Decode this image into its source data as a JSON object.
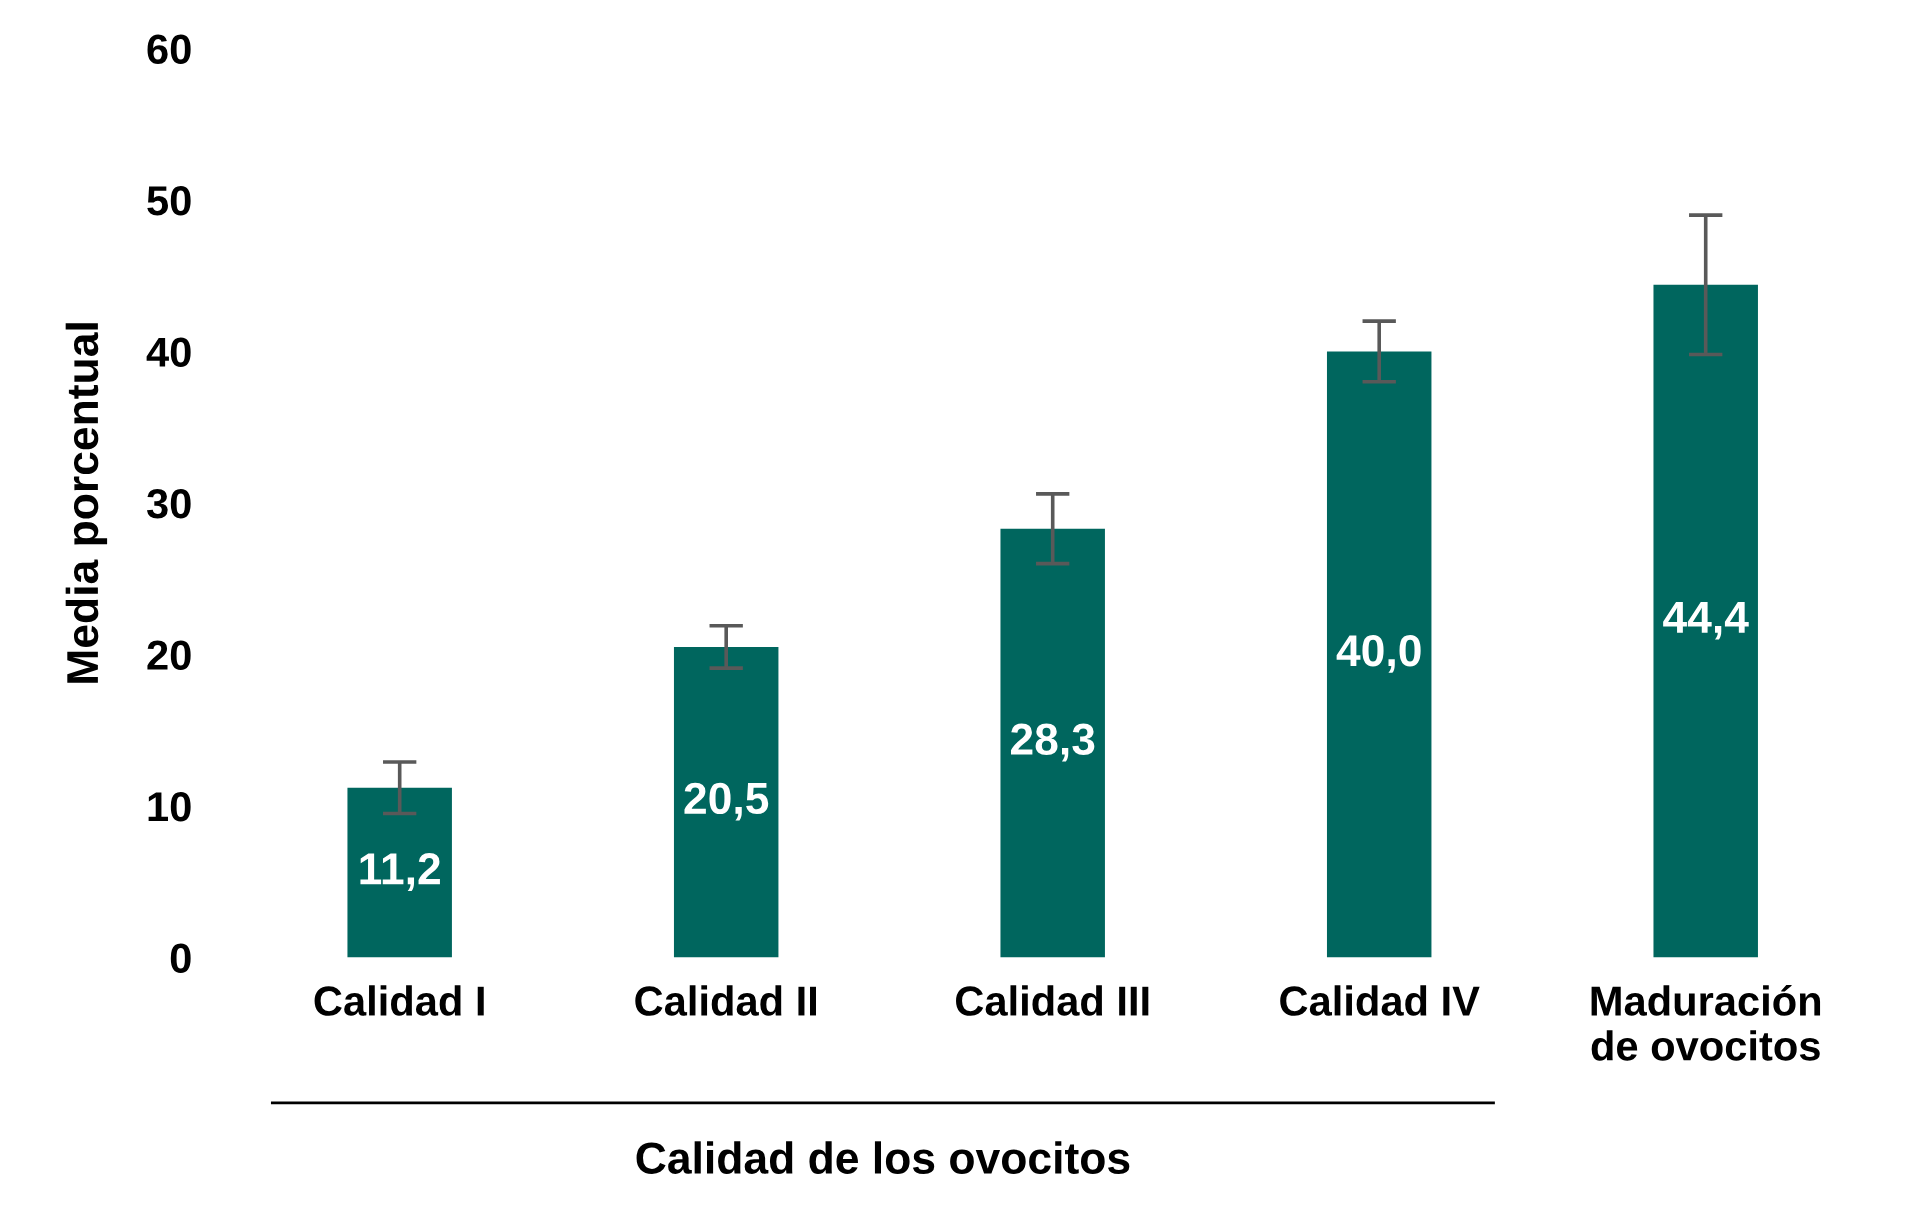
{
  "chart_data": {
    "type": "bar",
    "ylabel": "Media porcentual",
    "xlabel": "Calidad de los ovocitos",
    "categories": [
      "Calidad I",
      "Calidad II",
      "Calidad III",
      "Calidad IV",
      "Maduración\nde ovocitos"
    ],
    "values": [
      11.2,
      20.5,
      28.3,
      40.0,
      44.4
    ],
    "value_labels": [
      "11,2",
      "20,5",
      "28,3",
      "40,0",
      "44,4"
    ],
    "errors": [
      1.7,
      1.4,
      2.3,
      2.0,
      4.6
    ],
    "color": "#00665e",
    "ylim": [
      0,
      60
    ],
    "yticks": [
      0,
      10,
      20,
      30,
      40,
      50,
      60
    ],
    "grid": false,
    "legend": false
  }
}
